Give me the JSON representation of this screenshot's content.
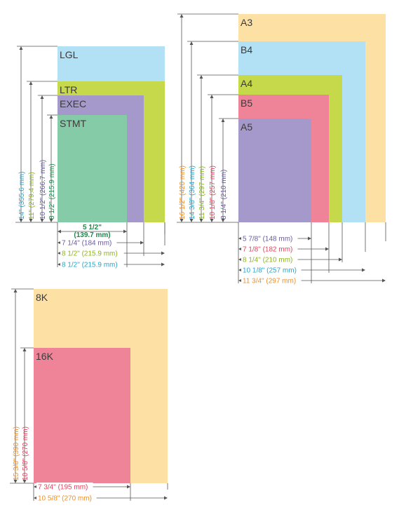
{
  "groups": [
    {
      "papers": [
        {
          "label": "LGL",
          "color": "#b2e0f4"
        },
        {
          "label": "LTR",
          "color": "#c5d94a"
        },
        {
          "label": "EXEC",
          "color": "#a599cc"
        },
        {
          "label": "STMT",
          "color": "#86cba8"
        }
      ],
      "heights": [
        {
          "text": "14\" (355.6 mm)",
          "color": "#2aa6c9"
        },
        {
          "text": "11\" (279.4 mm)",
          "color": "#8db41f"
        },
        {
          "text": "10 1/2\" (266.7 mm)",
          "color": "#6a5a9e"
        },
        {
          "text": "8 1/2\" (215.9 mm)",
          "color": "#1c8a4a"
        }
      ],
      "widths": [
        {
          "text": "5 1/2\"",
          "text2": "(139.7 mm)",
          "color": "#1c8a4a"
        },
        {
          "text": "7 1/4\" (184 mm)",
          "color": "#6a5a9e"
        },
        {
          "text": "8 1/2\" (215.9 mm)",
          "color": "#8db41f"
        },
        {
          "text": "8 1/2\" (215.9 mm)",
          "color": "#2aa6c9"
        }
      ]
    },
    {
      "papers": [
        {
          "label": "A3",
          "color": "#fde0a4"
        },
        {
          "label": "B4",
          "color": "#b2e0f4"
        },
        {
          "label": "A4",
          "color": "#c5d94a"
        },
        {
          "label": "B5",
          "color": "#ef8499"
        },
        {
          "label": "A5",
          "color": "#a599cc"
        }
      ],
      "heights": [
        {
          "text": "16 1/2\" (420 mm)",
          "color": "#f0902a"
        },
        {
          "text": "14 3/8\" (364 mm)",
          "color": "#2aa6c9"
        },
        {
          "text": "11 3/4\" (297 mm)",
          "color": "#8db41f"
        },
        {
          "text": "10 1/8\" (257 mm)",
          "color": "#e0445e"
        },
        {
          "text": "8 1/4\" (210 mm)",
          "color": "#6a5a9e"
        }
      ],
      "widths": [
        {
          "text": "5 7/8\" (148 mm)",
          "color": "#6a5a9e"
        },
        {
          "text": "7 1/8\" (182 mm)",
          "color": "#e0445e"
        },
        {
          "text": "8 1/4\" (210 mm)",
          "color": "#8db41f"
        },
        {
          "text": "10 1/8\" (257 mm)",
          "color": "#2aa6c9"
        },
        {
          "text": "11 3/4\" (297 mm)",
          "color": "#f0902a"
        }
      ]
    },
    {
      "papers": [
        {
          "label": "8K",
          "color": "#fde0a4"
        },
        {
          "label": "16K",
          "color": "#ef8499"
        }
      ],
      "heights": [
        {
          "text": "15 3/8\" (390 mm)",
          "color": "#f0902a"
        },
        {
          "text": "10 5/8\" (270 mm)",
          "color": "#e0445e"
        }
      ],
      "widths": [
        {
          "text": "7 3/4\" (195 mm)",
          "color": "#e0445e"
        },
        {
          "text": "10 5/8\" (270 mm)",
          "color": "#f0902a"
        }
      ]
    }
  ]
}
